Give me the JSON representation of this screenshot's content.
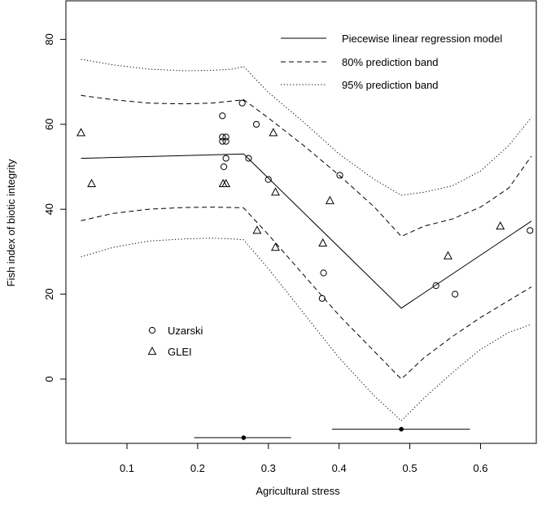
{
  "chart_data": {
    "type": "scatter",
    "title": "",
    "xlabel": "Agricultural stress",
    "ylabel": "Fish index of biotic integrity",
    "xlim": [
      0.03,
      0.68
    ],
    "ylim": [
      -15,
      88
    ],
    "xticks": [
      0.1,
      0.2,
      0.3,
      0.4,
      0.5,
      0.6
    ],
    "xtick_labels": [
      "0.1",
      "0.2",
      "0.3",
      "0.4",
      "0.5",
      "0.6"
    ],
    "yticks": [
      0,
      20,
      40,
      60,
      80
    ],
    "ytick_labels": [
      "0",
      "20",
      "40",
      "60",
      "80"
    ],
    "grid": false,
    "legend_top": {
      "position": "top-right",
      "entries": [
        {
          "label": "Piecewise linear regression model",
          "style": "solid"
        },
        {
          "label": "80% prediction band",
          "style": "dashed"
        },
        {
          "label": "95% prediction band",
          "style": "dotted"
        }
      ]
    },
    "legend_points": {
      "position": "bottom-left",
      "entries": [
        {
          "label": "Uzarski",
          "marker": "circle"
        },
        {
          "label": "GLEI",
          "marker": "triangle"
        }
      ]
    },
    "points": [
      {
        "name": "Uzarski",
        "marker": "circle",
        "x": [
          0.235,
          0.235,
          0.235,
          0.237,
          0.24,
          0.24,
          0.24,
          0.263,
          0.272,
          0.283,
          0.3,
          0.376,
          0.378,
          0.401,
          0.537,
          0.564,
          0.67
        ],
        "y": [
          62,
          57,
          56,
          50,
          57,
          56,
          52,
          65,
          52,
          60,
          47,
          19,
          25,
          48,
          22,
          20,
          35
        ]
      },
      {
        "name": "GLEI",
        "marker": "triangle",
        "x": [
          0.035,
          0.05,
          0.236,
          0.24,
          0.284,
          0.307,
          0.31,
          0.31,
          0.377,
          0.387,
          0.554,
          0.628
        ],
        "y": [
          58,
          46,
          46,
          46,
          35,
          58,
          44,
          31,
          32,
          42,
          29,
          36
        ]
      }
    ],
    "series": [
      {
        "style": "solid",
        "x": [
          0.035,
          0.265,
          0.488,
          0.672
        ],
        "y": [
          52,
          53,
          16.7,
          37.2
        ]
      },
      {
        "style": "dashed",
        "x": [
          0.035,
          0.08,
          0.13,
          0.18,
          0.22,
          0.25,
          0.265,
          0.3,
          0.35,
          0.4,
          0.45,
          0.488,
          0.52,
          0.56,
          0.6,
          0.64,
          0.672
        ],
        "y": [
          66.8,
          65.8,
          65.0,
          64.8,
          65.0,
          65.5,
          65.8,
          61.5,
          55.0,
          48.0,
          40.5,
          33.6,
          36.0,
          37.7,
          40.5,
          45.0,
          52.5
        ]
      },
      {
        "style": "dashed",
        "x": [
          0.035,
          0.08,
          0.13,
          0.18,
          0.22,
          0.25,
          0.265,
          0.3,
          0.35,
          0.4,
          0.45,
          0.488,
          0.52,
          0.56,
          0.6,
          0.64,
          0.672
        ],
        "y": [
          37.3,
          39.0,
          40.0,
          40.4,
          40.5,
          40.4,
          40.3,
          34.0,
          24.5,
          15.0,
          6.5,
          0.0,
          5.0,
          10.0,
          14.5,
          18.5,
          21.7
        ]
      },
      {
        "style": "dotted",
        "x": [
          0.035,
          0.08,
          0.13,
          0.18,
          0.22,
          0.25,
          0.265,
          0.3,
          0.35,
          0.4,
          0.45,
          0.488,
          0.52,
          0.56,
          0.6,
          0.64,
          0.672
        ],
        "y": [
          75.3,
          74.0,
          73.0,
          72.6,
          72.7,
          73.0,
          73.6,
          67.5,
          60.5,
          53.0,
          47.0,
          43.3,
          44.0,
          45.5,
          49.0,
          55.0,
          61.6
        ]
      },
      {
        "style": "dotted",
        "x": [
          0.035,
          0.08,
          0.13,
          0.18,
          0.22,
          0.25,
          0.265,
          0.3,
          0.35,
          0.4,
          0.45,
          0.488,
          0.52,
          0.56,
          0.6,
          0.64,
          0.672
        ],
        "y": [
          28.8,
          31.0,
          32.5,
          33.0,
          33.2,
          33.0,
          32.8,
          26.0,
          15.5,
          5.0,
          -4.0,
          -9.8,
          -4.5,
          1.5,
          7.0,
          11.0,
          12.9
        ]
      }
    ],
    "breakpoint_intervals": [
      {
        "center": 0.265,
        "low": 0.195,
        "high": 0.332,
        "y": -13.8
      },
      {
        "center": 0.488,
        "low": 0.39,
        "high": 0.585,
        "y": -11.8
      }
    ]
  }
}
